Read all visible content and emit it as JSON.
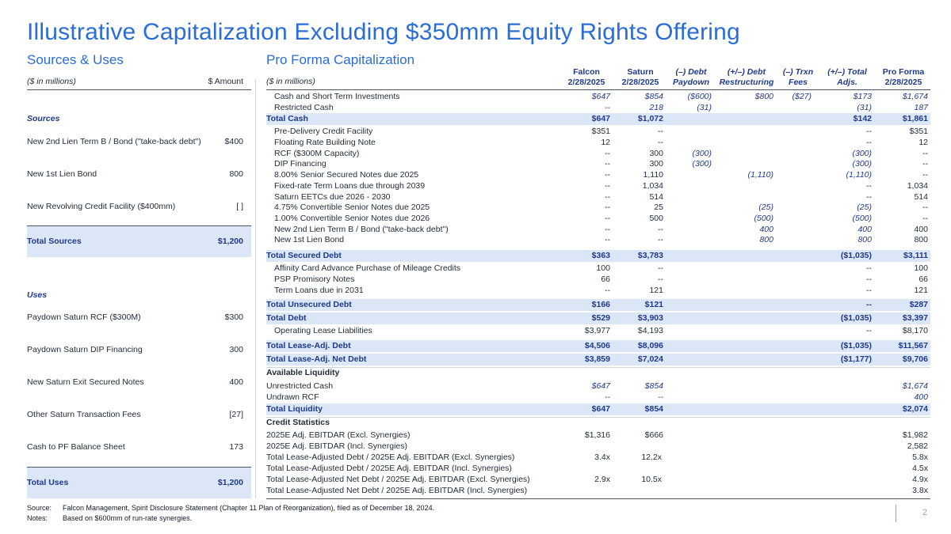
{
  "title": "Illustrative Capitalization Excluding $350mm Equity Rights Offering",
  "sources_uses": {
    "heading": "Sources & Uses",
    "col_label": "($ in millions)",
    "col_amount": "$ Amount",
    "sources_label": "Sources",
    "sources": [
      {
        "label": "New 2nd Lien Term B / Bond (\"take-back debt\")",
        "amount": "$400"
      },
      {
        "label": "New 1st Lien Bond",
        "amount": "800"
      },
      {
        "label": "New Revolving Credit Facility ($400mm)",
        "amount": "[ ]"
      }
    ],
    "total_sources": {
      "label": "Total Sources",
      "amount": "$1,200"
    },
    "uses_label": "Uses",
    "uses": [
      {
        "label": "Paydown Saturn RCF ($300M)",
        "amount": "$300"
      },
      {
        "label": "Paydown Saturn DIP Financing",
        "amount": "300"
      },
      {
        "label": "New Saturn Exit Secured Notes",
        "amount": "400"
      },
      {
        "label": "Other Saturn Transaction Fees",
        "amount": "[27]"
      },
      {
        "label": "Cash to PF Balance Sheet",
        "amount": "173"
      }
    ],
    "total_uses": {
      "label": "Total Uses",
      "amount": "$1,200"
    }
  },
  "pro_forma": {
    "heading": "Pro Forma Capitalization",
    "col_label": "($ in millions)",
    "columns": [
      {
        "l1": "Falcon",
        "l2": "2/28/2025"
      },
      {
        "l1": "Saturn",
        "l2": "2/28/2025"
      },
      {
        "l1": "(–) Debt",
        "l2": "Paydown"
      },
      {
        "l1": "(+/–) Debt",
        "l2": "Restructuring"
      },
      {
        "l1": "(–) Trxn",
        "l2": "Fees"
      },
      {
        "l1": "(+/–) Total",
        "l2": "Adjs."
      },
      {
        "l1": "Pro Forma",
        "l2": "2/28/2025"
      }
    ],
    "rows": {
      "cash": {
        "label": "Cash and Short Term Investments",
        "v": [
          "$647",
          "$854",
          "($600)",
          "$800",
          "($27)",
          "$173",
          "$1,674"
        ]
      },
      "restricted": {
        "label": "Restricted Cash",
        "v": [
          "--",
          "218",
          "(31)",
          "",
          "",
          "(31)",
          "187"
        ]
      },
      "total_cash": {
        "label": "Total Cash",
        "v": [
          "$647",
          "$1,072",
          "",
          "",
          "",
          "$142",
          "$1,861"
        ]
      },
      "pdc": {
        "label": "Pre-Delivery Credit Facility",
        "v": [
          "$351",
          "--",
          "",
          "",
          "",
          "--",
          "$351"
        ]
      },
      "frbn": {
        "label": "Floating Rate Building Note",
        "v": [
          "12",
          "--",
          "",
          "",
          "",
          "--",
          "12"
        ]
      },
      "rcf": {
        "label": "RCF ($300M Capacity)",
        "v": [
          "--",
          "300",
          "(300)",
          "",
          "",
          "(300)",
          "--"
        ]
      },
      "dip": {
        "label": "DIP Financing",
        "v": [
          "--",
          "300",
          "(300)",
          "",
          "",
          "(300)",
          "--"
        ]
      },
      "ssn": {
        "label": "8.00% Senior Secured Notes due 2025",
        "v": [
          "--",
          "1,110",
          "",
          "(1,110)",
          "",
          "(1,110)",
          "--"
        ]
      },
      "frtl": {
        "label": "Fixed-rate Term Loans due through 2039",
        "v": [
          "--",
          "1,034",
          "",
          "",
          "",
          "--",
          "1,034"
        ]
      },
      "eetc": {
        "label": "Saturn EETCs due 2026 - 2030",
        "v": [
          "--",
          "514",
          "",
          "",
          "",
          "--",
          "514"
        ]
      },
      "csn475": {
        "label": "4.75% Convertible Senior Notes due 2025",
        "v": [
          "--",
          "25",
          "",
          "(25)",
          "",
          "(25)",
          "--"
        ]
      },
      "csn100": {
        "label": "1.00% Convertible Senior Notes due 2026",
        "v": [
          "--",
          "500",
          "",
          "(500)",
          "",
          "(500)",
          "--"
        ]
      },
      "n2l": {
        "label": "New 2nd Lien Term B / Bond (\"take-back debt\")",
        "v": [
          "--",
          "--",
          "",
          "400",
          "",
          "400",
          "400"
        ]
      },
      "n1l": {
        "label": "New 1st Lien Bond",
        "v": [
          "--",
          "--",
          "",
          "800",
          "",
          "800",
          "800"
        ]
      },
      "total_secured": {
        "label": "Total Secured Debt",
        "v": [
          "$363",
          "$3,783",
          "",
          "",
          "",
          "($1,035)",
          "$3,111"
        ]
      },
      "acap": {
        "label": "Affinity Card Advance Purchase of Mileage Credits",
        "v": [
          "100",
          "--",
          "",
          "",
          "",
          "--",
          "100"
        ]
      },
      "psp": {
        "label": "PSP Promisory Notes",
        "v": [
          "66",
          "--",
          "",
          "",
          "",
          "--",
          "66"
        ]
      },
      "tl2031": {
        "label": "Term Loans due in 2031",
        "v": [
          "--",
          "121",
          "",
          "",
          "",
          "--",
          "121"
        ]
      },
      "total_unsecured": {
        "label": "Total Unsecured Debt",
        "v": [
          "$166",
          "$121",
          "",
          "",
          "",
          "--",
          "$287"
        ]
      },
      "total_debt": {
        "label": "Total Debt",
        "v": [
          "$529",
          "$3,903",
          "",
          "",
          "",
          "($1,035)",
          "$3,397"
        ]
      },
      "oll": {
        "label": "Operating Lease Liabilities",
        "v": [
          "$3,977",
          "$4,193",
          "",
          "",
          "",
          "--",
          "$8,170"
        ]
      },
      "total_lease_adj": {
        "label": "Total Lease-Adj. Debt",
        "v": [
          "$4,506",
          "$8,096",
          "",
          "",
          "",
          "($1,035)",
          "$11,567"
        ]
      },
      "total_lease_adj_net": {
        "label": "Total Lease-Adj. Net Debt",
        "v": [
          "$3,859",
          "$7,024",
          "",
          "",
          "",
          "($1,177)",
          "$9,706"
        ]
      },
      "avail_liq": {
        "label": "Available Liquidity"
      },
      "unrestricted": {
        "label": "Unrestricted Cash",
        "v": [
          "$647",
          "$854",
          "",
          "",
          "",
          "",
          "$1,674"
        ]
      },
      "undrawn": {
        "label": "Undrawn RCF",
        "v": [
          "--",
          "--",
          "",
          "",
          "",
          "",
          "400"
        ]
      },
      "total_liq": {
        "label": "Total Liquidity",
        "v": [
          "$647",
          "$854",
          "",
          "",
          "",
          "",
          "$2,074"
        ]
      },
      "credit_stats": {
        "label": "Credit Statistics"
      },
      "ebitdar_ex": {
        "label": "2025E Adj. EBITDAR (Excl. Synergies)",
        "v": [
          "$1,316",
          "$666",
          "",
          "",
          "",
          "",
          "$1,982"
        ]
      },
      "ebitdar_in": {
        "label": "2025E Adj. EBITDAR  (Incl. Synergies)",
        "v": [
          "",
          "",
          "",
          "",
          "",
          "",
          "2,582"
        ]
      },
      "tlad_ex": {
        "label": "Total Lease-Adjusted Debt / 2025E Adj. EBITDAR (Excl. Synergies)",
        "v": [
          "3.4x",
          "12.2x",
          "",
          "",
          "",
          "",
          "5.8x"
        ]
      },
      "tlad_in": {
        "label": "Total Lease-Adjusted Debt / 2025E Adj. EBITDAR (Incl. Synergies)",
        "v": [
          "",
          "",
          "",
          "",
          "",
          "",
          "4.5x"
        ]
      },
      "tland_ex": {
        "label": "Total Lease-Adjusted Net Debt / 2025E Adj. EBITDAR (Excl. Synergies)",
        "v": [
          "2.9x",
          "10.5x",
          "",
          "",
          "",
          "",
          "4.9x"
        ]
      },
      "tland_in": {
        "label": "Total Lease-Adjusted Net Debt / 2025E Adj. EBITDAR (Incl. Synergies)",
        "v": [
          "",
          "",
          "",
          "",
          "",
          "",
          "3.8x"
        ]
      }
    }
  },
  "footnotes": {
    "source_key": "Source:",
    "source_text": "Falcon Management, Spirit Disclosure Statement (Chapter 11 Plan of Reorganization), filed as of December 18, 2024.",
    "notes_key": "Notes:",
    "notes_text": "Based on $600mm of run-rate synergies."
  },
  "page_number": "2",
  "colors": {
    "accent": "#2b6dd6",
    "dark_blue": "#1e3a8a",
    "total_fill": "#dbe6f6"
  }
}
